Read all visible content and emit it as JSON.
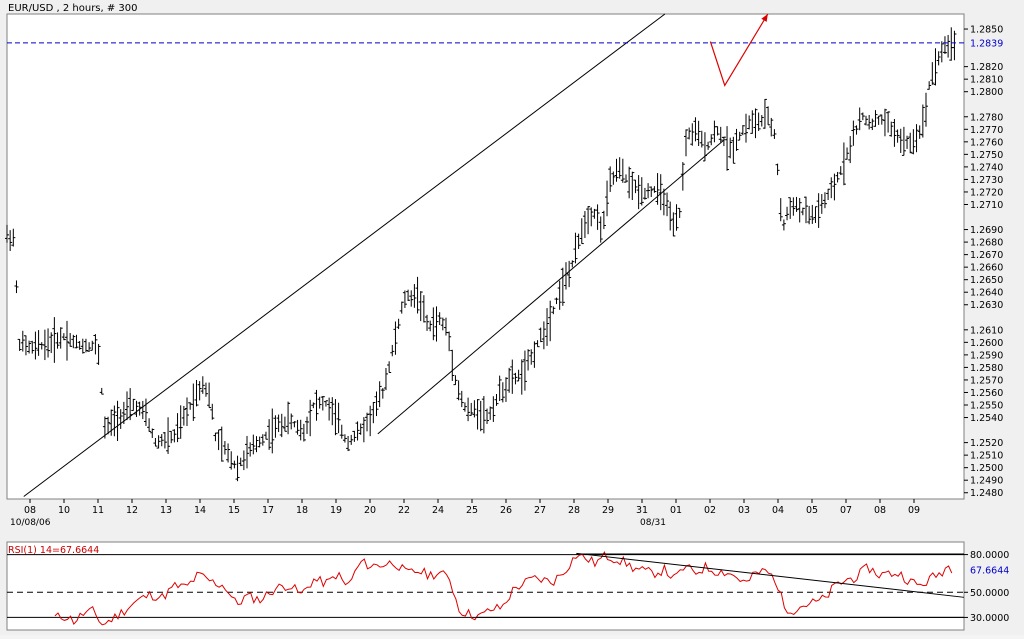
{
  "chart_data": [
    {
      "type": "ohlc",
      "title": "EUR/USD , 2 hours, # 300",
      "y_range": [
        1.2475,
        1.2862
      ],
      "y_ticks": [
        "1.2480",
        "1.2490",
        "1.2500",
        "1.2510",
        "1.2520",
        "1.2540",
        "1.2550",
        "1.2560",
        "1.2570",
        "1.2580",
        "1.2590",
        "1.2600",
        "1.2610",
        "1.2630",
        "1.2640",
        "1.2650",
        "1.2660",
        "1.2670",
        "1.2680",
        "1.2690",
        "1.2710",
        "1.2720",
        "1.2730",
        "1.2740",
        "1.2750",
        "1.2760",
        "1.2770",
        "1.2780",
        "1.2800",
        "1.2810",
        "1.2820",
        "1.2850"
      ],
      "x_ticks": [
        "08",
        "10",
        "11",
        "12",
        "13",
        "14",
        "15",
        "17",
        "18",
        "19",
        "20",
        "22",
        "24",
        "25",
        "26",
        "27",
        "28",
        "29",
        "31",
        "01",
        "02",
        "03",
        "04",
        "05",
        "07",
        "08",
        "09"
      ],
      "x_sub_labels": [
        "10/08/06",
        "08/31"
      ],
      "current_price_label": "1.2839",
      "current_price": 1.2839,
      "channel_lines": [
        {
          "from": {
            "bar": 7,
            "price": 1.2477
          },
          "to": {
            "bar": 275,
            "price": 1.2862
          }
        },
        {
          "from": {
            "bar": 155,
            "price": 1.2527
          },
          "to": {
            "bar": 300,
            "price": 1.2762
          }
        }
      ],
      "forecast_arrow_points": [
        {
          "bar": 294,
          "price": 1.284
        },
        {
          "bar": 300,
          "price": 1.2805
        },
        {
          "bar": 318,
          "price": 1.2862
        }
      ],
      "price_path": [
        [
          0,
          1.2685
        ],
        [
          3,
          1.2683
        ],
        [
          5,
          1.26
        ],
        [
          10,
          1.2595
        ],
        [
          18,
          1.26
        ],
        [
          24,
          1.2605
        ],
        [
          30,
          1.2598
        ],
        [
          38,
          1.2597
        ],
        [
          41,
          1.253
        ],
        [
          45,
          1.2538
        ],
        [
          53,
          1.255
        ],
        [
          58,
          1.2542
        ],
        [
          62,
          1.252
        ],
        [
          70,
          1.2525
        ],
        [
          78,
          1.2555
        ],
        [
          82,
          1.2568
        ],
        [
          85,
          1.2555
        ],
        [
          87,
          1.2525
        ],
        [
          92,
          1.2512
        ],
        [
          96,
          1.25
        ],
        [
          100,
          1.251
        ],
        [
          105,
          1.252
        ],
        [
          112,
          1.2532
        ],
        [
          118,
          1.2538
        ],
        [
          124,
          1.2528
        ],
        [
          128,
          1.255
        ],
        [
          133,
          1.2552
        ],
        [
          138,
          1.2538
        ],
        [
          142,
          1.252
        ],
        [
          148,
          1.253
        ],
        [
          152,
          1.254
        ],
        [
          157,
          1.256
        ],
        [
          162,
          1.26
        ],
        [
          166,
          1.2635
        ],
        [
          172,
          1.2638
        ],
        [
          176,
          1.2612
        ],
        [
          181,
          1.2618
        ],
        [
          184,
          1.261
        ],
        [
          188,
          1.2565
        ],
        [
          192,
          1.2545
        ],
        [
          197,
          1.2546
        ],
        [
          201,
          1.254
        ],
        [
          206,
          1.256
        ],
        [
          211,
          1.257
        ],
        [
          216,
          1.2575
        ],
        [
          222,
          1.26
        ],
        [
          226,
          1.2615
        ],
        [
          231,
          1.264
        ],
        [
          236,
          1.266
        ],
        [
          241,
          1.2695
        ],
        [
          245,
          1.2705
        ],
        [
          249,
          1.269
        ],
        [
          252,
          1.2728
        ],
        [
          256,
          1.2738
        ],
        [
          261,
          1.2725
        ],
        [
          266,
          1.272
        ],
        [
          271,
          1.2722
        ],
        [
          275,
          1.2715
        ],
        [
          278,
          1.269
        ],
        [
          281,
          1.27
        ],
        [
          284,
          1.2765
        ],
        [
          288,
          1.2768
        ],
        [
          292,
          1.2755
        ],
        [
          297,
          1.277
        ],
        [
          302,
          1.2752
        ],
        [
          306,
          1.2765
        ],
        [
          310,
          1.2775
        ],
        [
          314,
          1.2775
        ],
        [
          318,
          1.278
        ],
        [
          321,
          1.2765
        ],
        [
          324,
          1.269
        ],
        [
          328,
          1.2712
        ],
        [
          332,
          1.2705
        ],
        [
          337,
          1.27
        ],
        [
          341,
          1.271
        ],
        [
          346,
          1.2725
        ],
        [
          349,
          1.274
        ],
        [
          353,
          1.276
        ],
        [
          357,
          1.278
        ],
        [
          361,
          1.2775
        ],
        [
          366,
          1.2778
        ],
        [
          371,
          1.2768
        ],
        [
          375,
          1.2758
        ],
        [
          379,
          1.276
        ],
        [
          383,
          1.2775
        ],
        [
          386,
          1.2812
        ],
        [
          390,
          1.283
        ],
        [
          393,
          1.2838
        ],
        [
          396,
          1.2838
        ]
      ],
      "labels_visible_on_axis": [
        "1.2839"
      ]
    },
    {
      "type": "line",
      "title": "RSI(1) 14=67.6644",
      "value_label": "67.6644",
      "y_range": [
        20,
        90
      ],
      "y_ticks": [
        "80.0000",
        "50.0000",
        "30.0000"
      ],
      "levels": [
        80,
        50,
        30
      ],
      "trend_line": {
        "from": {
          "bar": 238,
          "value": 81
        },
        "to": {
          "bar": 400,
          "value": 46
        }
      },
      "support_line": {
        "from": {
          "bar": 196,
          "value": 30
        },
        "to": {
          "bar": 400,
          "value": 30
        }
      },
      "resistance_line": {
        "from": {
          "bar": 238,
          "value": 80.5
        },
        "to": {
          "bar": 400,
          "value": 80.5
        }
      },
      "series": [
        [
          20,
          30
        ],
        [
          25,
          31
        ],
        [
          28,
          27
        ],
        [
          32,
          33
        ],
        [
          36,
          35
        ],
        [
          40,
          24
        ],
        [
          45,
          30
        ],
        [
          50,
          37
        ],
        [
          55,
          44
        ],
        [
          60,
          48
        ],
        [
          65,
          46
        ],
        [
          70,
          55
        ],
        [
          75,
          54
        ],
        [
          80,
          64
        ],
        [
          86,
          58
        ],
        [
          91,
          55
        ],
        [
          96,
          40
        ],
        [
          100,
          47
        ],
        [
          106,
          44
        ],
        [
          112,
          53
        ],
        [
          118,
          56
        ],
        [
          123,
          48
        ],
        [
          128,
          60
        ],
        [
          134,
          57
        ],
        [
          138,
          65
        ],
        [
          142,
          54
        ],
        [
          148,
          74
        ],
        [
          152,
          71
        ],
        [
          157,
          72
        ],
        [
          162,
          74
        ],
        [
          167,
          65
        ],
        [
          172,
          67
        ],
        [
          176,
          64
        ],
        [
          181,
          65
        ],
        [
          185,
          61
        ],
        [
          189,
          36
        ],
        [
          194,
          32
        ],
        [
          198,
          31
        ],
        [
          202,
          36
        ],
        [
          207,
          38
        ],
        [
          212,
          53
        ],
        [
          216,
          57
        ],
        [
          220,
          61
        ],
        [
          224,
          60
        ],
        [
          228,
          58
        ],
        [
          233,
          67
        ],
        [
          238,
          80
        ],
        [
          242,
          77
        ],
        [
          246,
          73
        ],
        [
          250,
          79
        ],
        [
          254,
          77
        ],
        [
          258,
          74
        ],
        [
          262,
          69
        ],
        [
          266,
          67
        ],
        [
          270,
          65
        ],
        [
          275,
          68
        ],
        [
          279,
          60
        ],
        [
          283,
          70
        ],
        [
          288,
          66
        ],
        [
          292,
          70
        ],
        [
          296,
          67
        ],
        [
          301,
          66
        ],
        [
          305,
          62
        ],
        [
          309,
          57
        ],
        [
          313,
          65
        ],
        [
          317,
          67
        ],
        [
          321,
          61
        ],
        [
          325,
          38
        ],
        [
          329,
          36
        ],
        [
          333,
          40
        ],
        [
          338,
          42
        ],
        [
          342,
          45
        ],
        [
          346,
          55
        ],
        [
          351,
          60
        ],
        [
          355,
          62
        ],
        [
          360,
          70
        ],
        [
          364,
          64
        ],
        [
          369,
          65
        ],
        [
          373,
          65
        ],
        [
          378,
          58
        ],
        [
          382,
          55
        ],
        [
          386,
          61
        ],
        [
          390,
          65
        ],
        [
          393,
          71
        ],
        [
          396,
          68
        ]
      ]
    }
  ]
}
